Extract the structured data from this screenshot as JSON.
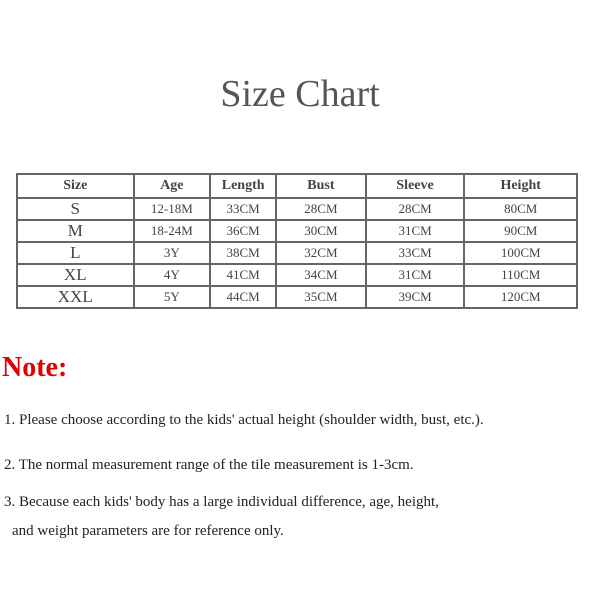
{
  "title": "Size Chart",
  "table": {
    "headers": [
      "Size",
      "Age",
      "Length",
      "Bust",
      "Sleeve",
      "Height"
    ],
    "rows": [
      [
        "S",
        "12-18M",
        "33CM",
        "28CM",
        "28CM",
        "80CM"
      ],
      [
        "M",
        "18-24M",
        "36CM",
        "30CM",
        "31CM",
        "90CM"
      ],
      [
        "L",
        "3Y",
        "38CM",
        "32CM",
        "33CM",
        "100CM"
      ],
      [
        "XL",
        "4Y",
        "41CM",
        "34CM",
        "31CM",
        "110CM"
      ],
      [
        "XXL",
        "5Y",
        "44CM",
        "35CM",
        "39CM",
        "120CM"
      ]
    ]
  },
  "note": {
    "heading": "Note:",
    "lines": [
      "1. Please choose according to the kids' actual height (shoulder width, bust, etc.).",
      "2. The normal measurement range of the tile measurement is 1-3cm.",
      "3. Because each kids' body has a large individual difference, age, height,",
      "   and weight parameters are for reference only."
    ]
  },
  "colors": {
    "note_heading": "#e00000"
  }
}
